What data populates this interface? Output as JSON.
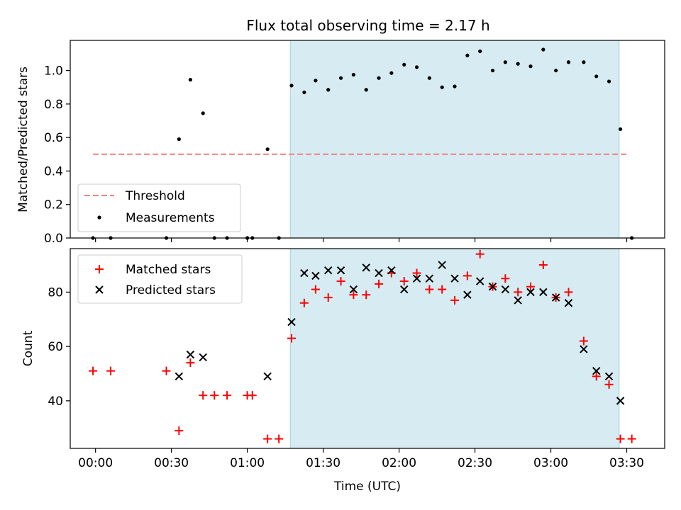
{
  "chart_data": [
    {
      "type": "scatter",
      "title": "Flux total observing time = 2.17 h",
      "xlabel": "",
      "ylabel": "Matched/Predicted stars",
      "x_unit": "minutes after 00:00 UTC",
      "xlim": [
        -10,
        225
      ],
      "ylim": [
        0,
        1.18
      ],
      "yticks": [
        "0.0",
        "0.2",
        "0.4",
        "0.6",
        "0.8",
        "1.0"
      ],
      "highlight_span": [
        77,
        207
      ],
      "threshold": {
        "value": 0.5,
        "x_range": [
          -1,
          211
        ],
        "color": "#f08080"
      },
      "legend": {
        "position": "lower-left",
        "entries": [
          "Threshold",
          "Measurements"
        ]
      },
      "series": [
        {
          "name": "Measurements",
          "marker": "dot",
          "color": "#000000",
          "points": [
            [
              -1,
              0.0
            ],
            [
              6,
              0.0
            ],
            [
              28,
              0.0
            ],
            [
              33,
              0.59
            ],
            [
              37.5,
              0.945
            ],
            [
              42.5,
              0.745
            ],
            [
              47,
              0.0
            ],
            [
              52,
              0.0
            ],
            [
              60,
              0.0
            ],
            [
              62,
              0.0
            ],
            [
              68,
              0.53
            ],
            [
              72.5,
              0.0
            ],
            [
              77.5,
              0.91
            ],
            [
              82.5,
              0.87
            ],
            [
              87,
              0.94
            ],
            [
              92,
              0.885
            ],
            [
              97,
              0.955
            ],
            [
              102,
              0.975
            ],
            [
              107,
              0.885
            ],
            [
              112,
              0.955
            ],
            [
              117,
              0.985
            ],
            [
              122,
              1.035
            ],
            [
              127,
              1.02
            ],
            [
              132,
              0.955
            ],
            [
              137,
              0.9
            ],
            [
              142,
              0.905
            ],
            [
              147,
              1.09
            ],
            [
              152,
              1.115
            ],
            [
              157,
              1.0
            ],
            [
              162,
              1.05
            ],
            [
              167,
              1.04
            ],
            [
              172,
              1.025
            ],
            [
              177,
              1.125
            ],
            [
              182,
              1.0
            ],
            [
              187,
              1.05
            ],
            [
              193,
              1.05
            ],
            [
              198,
              0.965
            ],
            [
              203,
              0.935
            ],
            [
              207.5,
              0.65
            ],
            [
              212,
              0.0
            ]
          ]
        }
      ]
    },
    {
      "type": "scatter",
      "title": "",
      "xlabel": "Time (UTC)",
      "ylabel": "Count",
      "x_unit": "minutes after 00:00 UTC",
      "xlim": [
        -10,
        225
      ],
      "ylim": [
        22.5,
        96
      ],
      "yticks": [
        "40",
        "60",
        "80"
      ],
      "xticks": [
        "00:00",
        "00:30",
        "01:00",
        "01:30",
        "02:00",
        "02:30",
        "03:00",
        "03:30"
      ],
      "highlight_span": [
        77,
        207
      ],
      "legend": {
        "position": "upper-left",
        "entries": [
          "Matched stars",
          "Predicted stars"
        ]
      },
      "series": [
        {
          "name": "Matched stars",
          "marker": "plus",
          "color": "#ff0000",
          "points": [
            [
              -1,
              51
            ],
            [
              6,
              51
            ],
            [
              28,
              51
            ],
            [
              33,
              29
            ],
            [
              37.5,
              54
            ],
            [
              42.5,
              42
            ],
            [
              47,
              42
            ],
            [
              52,
              42
            ],
            [
              60,
              42
            ],
            [
              62,
              42
            ],
            [
              68,
              26
            ],
            [
              72.5,
              26
            ],
            [
              77.5,
              63
            ],
            [
              82.5,
              76
            ],
            [
              87,
              81
            ],
            [
              92,
              78
            ],
            [
              97,
              84
            ],
            [
              102,
              79
            ],
            [
              107,
              79
            ],
            [
              112,
              83
            ],
            [
              117,
              87
            ],
            [
              122,
              84
            ],
            [
              127,
              87
            ],
            [
              132,
              81
            ],
            [
              137,
              81
            ],
            [
              142,
              77
            ],
            [
              147,
              86
            ],
            [
              152,
              94
            ],
            [
              157,
              82
            ],
            [
              162,
              85
            ],
            [
              167,
              80
            ],
            [
              172,
              82
            ],
            [
              177,
              90
            ],
            [
              182,
              78
            ],
            [
              187,
              80
            ],
            [
              193,
              62
            ],
            [
              198,
              49
            ],
            [
              203,
              46
            ],
            [
              207.5,
              26
            ],
            [
              212,
              26
            ]
          ]
        },
        {
          "name": "Predicted stars",
          "marker": "x",
          "color": "#000000",
          "points": [
            [
              33,
              49
            ],
            [
              37.5,
              57
            ],
            [
              42.5,
              56
            ],
            [
              68,
              49
            ],
            [
              77.5,
              69
            ],
            [
              82.5,
              87
            ],
            [
              87,
              86
            ],
            [
              92,
              88
            ],
            [
              97,
              88
            ],
            [
              102,
              81
            ],
            [
              107,
              89
            ],
            [
              112,
              87
            ],
            [
              117,
              88
            ],
            [
              122,
              81
            ],
            [
              127,
              85
            ],
            [
              132,
              85
            ],
            [
              137,
              90
            ],
            [
              142,
              85
            ],
            [
              147,
              79
            ],
            [
              152,
              84
            ],
            [
              157,
              82
            ],
            [
              162,
              81
            ],
            [
              167,
              77
            ],
            [
              172,
              80
            ],
            [
              177,
              80
            ],
            [
              182,
              78
            ],
            [
              187,
              76
            ],
            [
              193,
              59
            ],
            [
              198,
              51
            ],
            [
              203,
              49
            ],
            [
              207.5,
              40
            ]
          ]
        }
      ]
    }
  ]
}
